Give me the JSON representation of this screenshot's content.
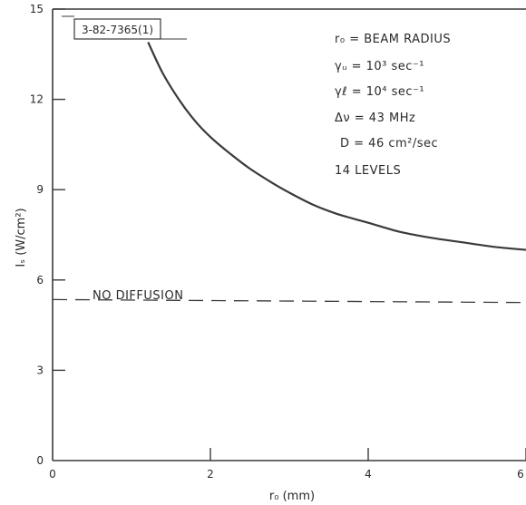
{
  "chart_data": {
    "type": "line",
    "figure_id": "3-82-7365(1)",
    "xlabel": "r₀ (mm)",
    "ylabel": "Iₛ (W/cm²)",
    "xlim": [
      0,
      6
    ],
    "ylim": [
      0,
      15
    ],
    "x_ticks": [
      0,
      2,
      4,
      6
    ],
    "x_tick_labels": [
      "0",
      "2",
      "4",
      "6"
    ],
    "y_ticks": [
      0,
      3,
      6,
      9,
      12,
      15
    ],
    "y_tick_labels": [
      "0",
      "3",
      "6",
      "9",
      "12",
      "15"
    ],
    "series": [
      {
        "style": "solid",
        "x": [
          1.21,
          1.4,
          1.6,
          1.8,
          2.0,
          2.2,
          2.5,
          2.8,
          3.0,
          3.3,
          3.6,
          4.0,
          4.4,
          4.8,
          5.2,
          5.6,
          6.0
        ],
        "y": [
          13.9,
          12.85,
          12.0,
          11.3,
          10.75,
          10.3,
          9.7,
          9.2,
          8.9,
          8.5,
          8.2,
          7.9,
          7.6,
          7.4,
          7.25,
          7.1,
          7.0
        ]
      },
      {
        "name": "NO DIFFUSION",
        "style": "dashed",
        "x": [
          0,
          6
        ],
        "y": [
          5.35,
          5.25
        ]
      }
    ],
    "annotations": [
      "r₀ = BEAM RADIUS",
      "γᵤ = 10³ sec⁻¹",
      "γℓ = 10⁴ sec⁻¹",
      "Δν = 43 MHz",
      "D = 46 cm²/sec",
      "14 LEVELS"
    ],
    "grid": false
  }
}
